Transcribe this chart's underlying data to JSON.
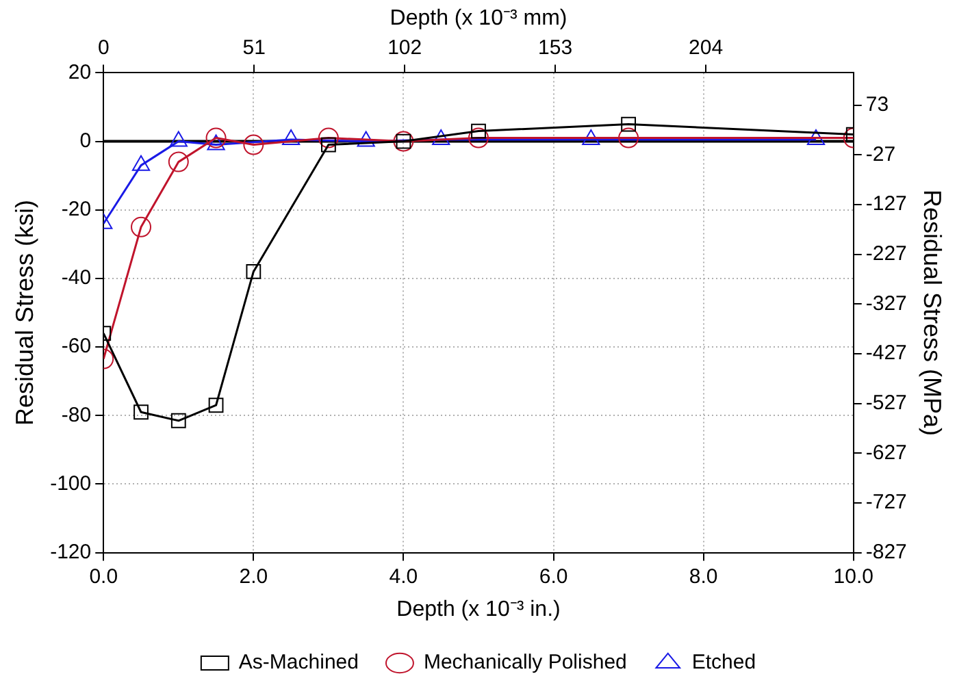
{
  "chart_data": {
    "type": "line",
    "xlabel": "Depth (x 10⁻³ in.)",
    "x2label": "Depth (x 10⁻³ mm)",
    "ylabel": "Residual Stress (ksi)",
    "y2label": "Residual Stress (MPa)",
    "xlim": [
      0,
      10
    ],
    "xticks": [
      {
        "value": 0,
        "label": "0.0"
      },
      {
        "value": 2,
        "label": "2.0"
      },
      {
        "value": 4,
        "label": "4.0"
      },
      {
        "value": 6,
        "label": "6.0"
      },
      {
        "value": 8,
        "label": "8.0"
      },
      {
        "value": 10,
        "label": "10.0"
      }
    ],
    "x2lim": [
      0,
      254
    ],
    "x2ticks": [
      0,
      51,
      102,
      153,
      204
    ],
    "ylim": [
      -120,
      20
    ],
    "yticks": [
      20,
      0,
      -20,
      -40,
      -60,
      -80,
      -100,
      -120
    ],
    "y2lim": [
      -827,
      138
    ],
    "y2ticks": [
      73,
      -27,
      -127,
      -227,
      -327,
      -427,
      -527,
      -627,
      -727,
      -827
    ],
    "grid": true,
    "legend": "bottom",
    "ref_lines": [
      {
        "axis": "y",
        "value": 0,
        "color": "#000000"
      }
    ],
    "series": [
      {
        "name": "As-Machined",
        "color": "#000000",
        "marker": "square",
        "x": [
          0,
          0.5,
          1.0,
          1.5,
          2.0,
          3.0,
          4.0,
          5.0,
          7.0,
          10.0
        ],
        "values": [
          -56,
          -79,
          -81.5,
          -77,
          -38,
          -1,
          0,
          3,
          5,
          2
        ]
      },
      {
        "name": "Mechanically Polished",
        "color": "#c0142c",
        "marker": "circle",
        "x": [
          0,
          0.5,
          1.0,
          1.5,
          2.0,
          3.0,
          4.0,
          5.0,
          7.0,
          10.0
        ],
        "values": [
          -63.5,
          -25,
          -6,
          1,
          -1,
          1,
          0,
          1,
          1,
          1
        ]
      },
      {
        "name": "Etched",
        "color": "#1a1ae6",
        "marker": "triangle",
        "x": [
          0,
          0.5,
          1.0,
          1.5,
          2.5,
          3.5,
          4.5,
          6.5,
          9.5
        ],
        "values": [
          -24,
          -7,
          0,
          -1,
          0.5,
          0,
          0.5,
          0.5,
          0.5
        ]
      }
    ]
  }
}
